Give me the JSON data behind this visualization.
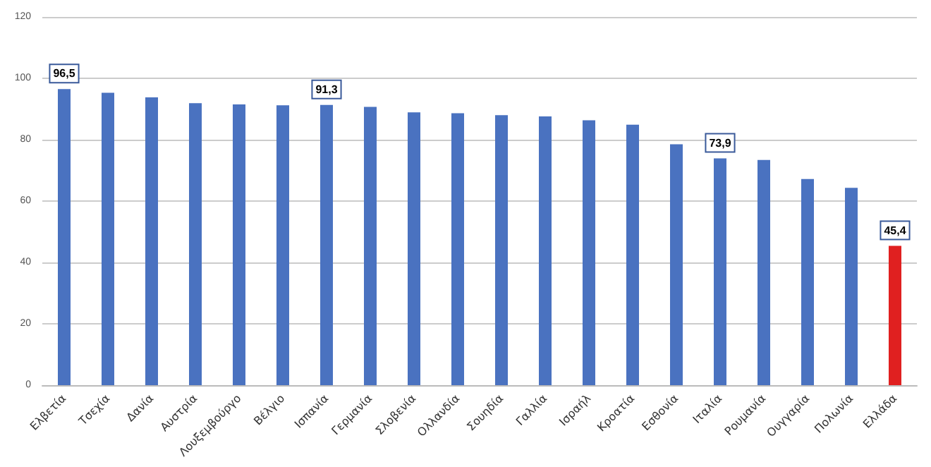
{
  "chart_data": {
    "type": "bar",
    "categories": [
      "Ελβετία",
      "Τσεχία",
      "Δανία",
      "Αυστρία",
      "Λουξεμβούργο",
      "Βέλγιο",
      "Ισπανία",
      "Γερμανία",
      "Σλοβενία",
      "Ολλανδία",
      "Σουηδία",
      "Γαλλία",
      "Ισραήλ",
      "Κροατία",
      "Εσθονία",
      "Ιταλία",
      "Ρουμανία",
      "Ουγγαρία",
      "Πολωνία",
      "Ελλάδα"
    ],
    "values": [
      96.5,
      95.3,
      93.8,
      91.9,
      91.5,
      91.2,
      91.3,
      90.7,
      88.9,
      88.6,
      88.0,
      87.6,
      86.3,
      84.9,
      78.5,
      73.9,
      73.4,
      67.2,
      64.3,
      45.4
    ],
    "colors": [
      "#4a72c0",
      "#4a72c0",
      "#4a72c0",
      "#4a72c0",
      "#4a72c0",
      "#4a72c0",
      "#4a72c0",
      "#4a72c0",
      "#4a72c0",
      "#4a72c0",
      "#4a72c0",
      "#4a72c0",
      "#4a72c0",
      "#4a72c0",
      "#4a72c0",
      "#4a72c0",
      "#4a72c0",
      "#4a72c0",
      "#4a72c0",
      "#e02020"
    ],
    "value_labels": [
      "96,5",
      null,
      null,
      null,
      null,
      null,
      "91,3",
      null,
      null,
      null,
      null,
      null,
      null,
      null,
      null,
      "73,9",
      null,
      null,
      null,
      "45,4"
    ],
    "ylim": [
      0,
      120
    ],
    "yticks": [
      0,
      20,
      40,
      60,
      80,
      100,
      120
    ],
    "grid": "y"
  }
}
